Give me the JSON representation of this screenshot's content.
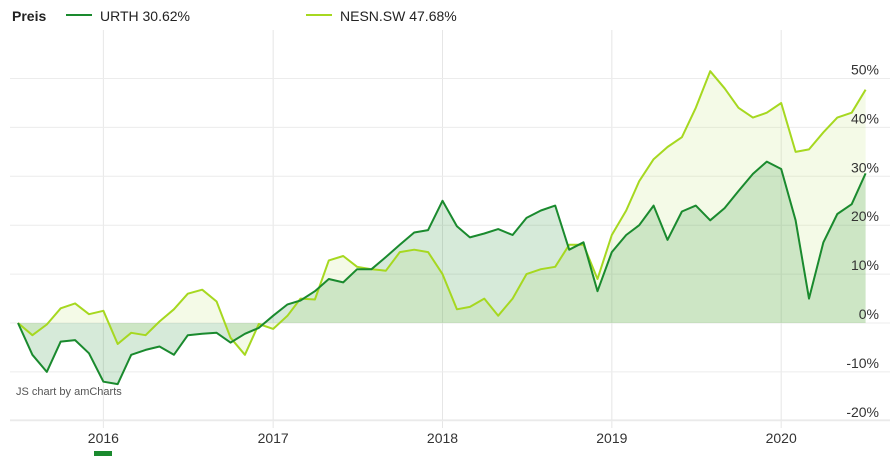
{
  "legend": {
    "title": "Preis",
    "series": [
      {
        "label": "URTH 30.62%",
        "color": "#1a8a2e"
      },
      {
        "label": "NESN.SW 47.68%",
        "color": "#a6d820"
      }
    ]
  },
  "credit": "JS chart by amCharts",
  "chart_data": {
    "type": "line",
    "ylim": [
      -20,
      55
    ],
    "y_ticks": [
      {
        "value": 50,
        "label": "50%"
      },
      {
        "value": 40,
        "label": "40%"
      },
      {
        "value": 30,
        "label": "30%"
      },
      {
        "value": 20,
        "label": "20%"
      },
      {
        "value": 10,
        "label": "10%"
      },
      {
        "value": 0,
        "label": "0%"
      },
      {
        "value": -10,
        "label": "-10%"
      },
      {
        "value": -20,
        "label": "-20%"
      }
    ],
    "x_ticks": [
      {
        "value": "2016-01-01",
        "label": "2016"
      },
      {
        "value": "2017-01-01",
        "label": "2017"
      },
      {
        "value": "2018-01-01",
        "label": "2018"
      },
      {
        "value": "2019-01-01",
        "label": "2019"
      },
      {
        "value": "2020-01-01",
        "label": "2020"
      }
    ],
    "xlim": [
      "2015-07-01",
      "2020-08-01"
    ],
    "grid": true,
    "x": [
      "2015-07-01",
      "2015-08-01",
      "2015-09-01",
      "2015-10-01",
      "2015-11-01",
      "2015-12-01",
      "2016-01-01",
      "2016-02-01",
      "2016-03-01",
      "2016-04-01",
      "2016-05-01",
      "2016-06-01",
      "2016-07-01",
      "2016-08-01",
      "2016-09-01",
      "2016-10-01",
      "2016-11-01",
      "2016-12-01",
      "2017-01-01",
      "2017-02-01",
      "2017-03-01",
      "2017-04-01",
      "2017-05-01",
      "2017-06-01",
      "2017-07-01",
      "2017-08-01",
      "2017-09-01",
      "2017-10-01",
      "2017-11-01",
      "2017-12-01",
      "2018-01-01",
      "2018-02-01",
      "2018-03-01",
      "2018-04-01",
      "2018-05-01",
      "2018-06-01",
      "2018-07-01",
      "2018-08-01",
      "2018-09-01",
      "2018-10-01",
      "2018-11-01",
      "2018-12-01",
      "2019-01-01",
      "2019-02-01",
      "2019-03-01",
      "2019-04-01",
      "2019-05-01",
      "2019-06-01",
      "2019-07-01",
      "2019-08-01",
      "2019-09-01",
      "2019-10-01",
      "2019-11-01",
      "2019-12-01",
      "2020-01-01",
      "2020-02-01",
      "2020-03-01",
      "2020-04-01",
      "2020-05-01",
      "2020-06-01",
      "2020-07-01"
    ],
    "series": [
      {
        "name": "URTH 30.62%",
        "color": "#1a8a2e",
        "fill": "#1a8a2e",
        "values": [
          0,
          -6.5,
          -10,
          -3.8,
          -3.5,
          -6.2,
          -12,
          -12.5,
          -6.5,
          -5.5,
          -4.8,
          -6.5,
          -2.5,
          -2.2,
          -2,
          -4,
          -2.2,
          -1,
          1.5,
          3.8,
          4.6,
          6.5,
          9,
          8.3,
          11,
          11,
          13.5,
          16,
          18.5,
          19,
          25,
          19.8,
          17.5,
          18.3,
          19.2,
          18,
          21.5,
          23,
          24,
          15,
          16.5,
          6.5,
          14.5,
          18,
          20,
          24,
          17,
          22.8,
          24,
          21,
          23.5,
          27,
          30.5,
          33,
          31.5,
          21,
          5,
          16.5,
          22.3,
          24.3,
          30.6
        ]
      },
      {
        "name": "NESN.SW 47.68%",
        "color": "#a6d820",
        "fill": "#c4e47a",
        "values": [
          0,
          -2.5,
          -0.3,
          3,
          4,
          1.8,
          2.5,
          -4.3,
          -2,
          -2.5,
          0.3,
          2.8,
          6,
          6.8,
          4.4,
          -3,
          -6.5,
          -0.2,
          -1.2,
          1.5,
          5,
          4.8,
          12.8,
          13.7,
          11.5,
          11,
          10.7,
          14.5,
          15,
          14.5,
          10,
          2.8,
          3.3,
          5,
          1.5,
          5,
          10,
          11,
          11.5,
          16,
          16,
          9,
          18,
          23,
          29,
          33.5,
          36,
          38,
          44,
          51.5,
          48,
          44,
          42,
          43,
          45,
          35,
          35.5,
          39,
          42,
          43,
          47.7
        ]
      }
    ]
  }
}
